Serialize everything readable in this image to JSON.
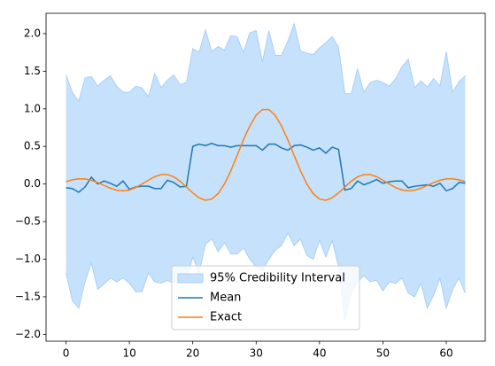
{
  "chart_data": {
    "type": "line",
    "x": [
      0,
      1,
      2,
      3,
      4,
      5,
      6,
      7,
      8,
      9,
      10,
      11,
      12,
      13,
      14,
      15,
      16,
      17,
      18,
      19,
      20,
      21,
      22,
      23,
      24,
      25,
      26,
      27,
      28,
      29,
      30,
      31,
      32,
      33,
      34,
      35,
      36,
      37,
      38,
      39,
      40,
      41,
      42,
      43,
      44,
      45,
      46,
      47,
      48,
      49,
      50,
      51,
      52,
      53,
      54,
      55,
      56,
      57,
      58,
      59,
      60,
      61,
      62,
      63
    ],
    "bands": [
      {
        "name": "95% Credibility Interval",
        "color": "#c6e1fb",
        "edge_color": "#a9d0f7",
        "upper": [
          1.45,
          1.22,
          1.1,
          1.41,
          1.43,
          1.3,
          1.38,
          1.44,
          1.3,
          1.22,
          1.22,
          1.3,
          1.28,
          1.16,
          1.47,
          1.28,
          1.38,
          1.45,
          1.32,
          1.35,
          1.8,
          1.75,
          2.05,
          1.76,
          1.83,
          1.78,
          1.97,
          1.96,
          1.75,
          2.01,
          2.04,
          1.62,
          2.04,
          1.71,
          1.71,
          1.9,
          2.13,
          1.77,
          1.74,
          1.72,
          1.81,
          1.88,
          1.96,
          1.82,
          1.2,
          1.2,
          1.53,
          1.22,
          1.35,
          1.38,
          1.35,
          1.3,
          1.4,
          1.56,
          1.66,
          1.28,
          1.37,
          1.29,
          1.4,
          1.3,
          1.76,
          1.22,
          1.36,
          1.44
        ],
        "lower": [
          -1.18,
          -1.55,
          -1.65,
          -1.3,
          -1.05,
          -1.4,
          -1.33,
          -1.25,
          -1.3,
          -1.25,
          -1.32,
          -1.43,
          -1.43,
          -1.18,
          -1.3,
          -1.32,
          -1.28,
          -1.32,
          -1.3,
          -1.28,
          -0.97,
          -1.18,
          -0.8,
          -0.73,
          -0.9,
          -0.78,
          -0.93,
          -0.93,
          -0.85,
          -1.0,
          -1.1,
          -1.15,
          -1.0,
          -0.88,
          -0.82,
          -0.65,
          -0.82,
          -0.73,
          -0.95,
          -1.0,
          -0.75,
          -0.97,
          -0.75,
          -1.1,
          -1.82,
          -1.45,
          -1.3,
          -1.22,
          -1.3,
          -1.28,
          -1.42,
          -1.3,
          -1.32,
          -1.25,
          -1.45,
          -1.5,
          -1.32,
          -1.65,
          -1.48,
          -1.25,
          -1.65,
          -1.4,
          -1.25,
          -1.45
        ]
      }
    ],
    "series": [
      {
        "name": "Mean",
        "color": "#1f77b4",
        "values": [
          -0.05,
          -0.06,
          -0.11,
          -0.04,
          0.09,
          0.0,
          0.04,
          0.01,
          -0.03,
          0.04,
          -0.07,
          -0.04,
          -0.03,
          -0.03,
          -0.06,
          -0.06,
          0.05,
          0.02,
          -0.04,
          -0.03,
          0.5,
          0.53,
          0.51,
          0.54,
          0.51,
          0.51,
          0.49,
          0.51,
          0.51,
          0.51,
          0.51,
          0.45,
          0.53,
          0.53,
          0.48,
          0.45,
          0.51,
          0.52,
          0.49,
          0.45,
          0.48,
          0.41,
          0.49,
          0.46,
          -0.08,
          -0.06,
          0.04,
          -0.01,
          0.02,
          0.06,
          0.01,
          0.03,
          0.04,
          0.04,
          -0.05,
          -0.03,
          -0.02,
          -0.01,
          -0.03,
          0.01,
          -0.09,
          -0.06,
          0.02,
          0.01
        ]
      },
      {
        "name": "Exact",
        "color": "#ff7f0e",
        "values": [
          0.03,
          0.056,
          0.07,
          0.068,
          0.05,
          0.019,
          -0.019,
          -0.056,
          -0.082,
          -0.091,
          -0.079,
          -0.047,
          0.0,
          0.052,
          0.097,
          0.125,
          0.125,
          0.095,
          0.037,
          -0.04,
          -0.119,
          -0.184,
          -0.216,
          -0.2,
          -0.128,
          0.0,
          0.175,
          0.379,
          0.588,
          0.773,
          0.915,
          0.99,
          0.99,
          0.915,
          0.773,
          0.588,
          0.379,
          0.175,
          0.0,
          -0.128,
          -0.2,
          -0.216,
          -0.184,
          -0.119,
          -0.04,
          0.037,
          0.095,
          0.125,
          0.125,
          0.097,
          0.052,
          0.0,
          -0.047,
          -0.079,
          -0.091,
          -0.082,
          -0.056,
          -0.019,
          0.019,
          0.05,
          0.068,
          0.07,
          0.056,
          0.03
        ]
      }
    ],
    "xlim": [
      -3.15,
      66.15
    ],
    "xticks": [
      0,
      10,
      20,
      30,
      40,
      50,
      60
    ],
    "ylim": [
      -2.09,
      2.27
    ],
    "yticks": [
      {
        "value": -2,
        "label": "−2.0"
      },
      {
        "value": -1.5,
        "label": "−1.5"
      },
      {
        "value": -1,
        "label": "−1.0"
      },
      {
        "value": -0.5,
        "label": "−0.5"
      },
      {
        "value": 0,
        "label": "0.0"
      },
      {
        "value": 0.5,
        "label": "0.5"
      },
      {
        "value": 1,
        "label": "1.0"
      },
      {
        "value": 1.5,
        "label": "1.5"
      },
      {
        "value": 2,
        "label": "2.0"
      }
    ],
    "grid": false,
    "legend": "lower center"
  }
}
